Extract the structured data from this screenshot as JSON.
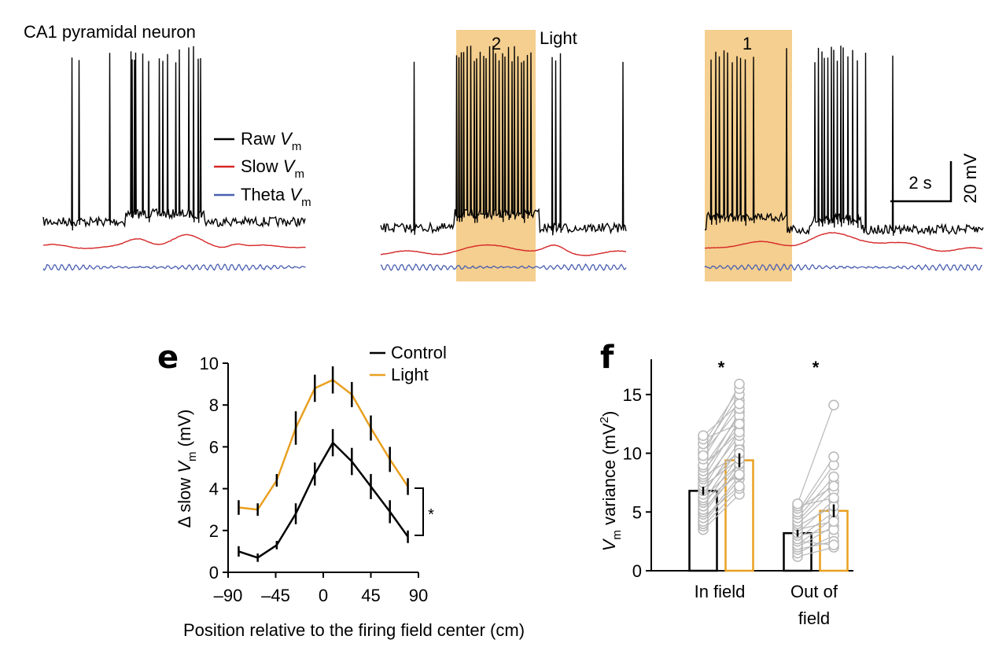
{
  "header": {
    "title": "CA1 pyramidal neuron"
  },
  "traces": {
    "legend": [
      {
        "label": "Raw ",
        "sub": "m",
        "color": "#000000"
      },
      {
        "label": "Slow ",
        "sub": "m",
        "color": "#d62728"
      },
      {
        "label": "Theta ",
        "sub": "m",
        "color": "#4a5fb0"
      }
    ],
    "legend_var": "V",
    "light_label": "Light",
    "light_color": "#f5cf8f",
    "box_labels": [
      "2",
      "1"
    ],
    "scalebar": {
      "time": "2 s",
      "voltage": "20 mV"
    }
  },
  "colors": {
    "control": "#000000",
    "light": "#e8a020",
    "points": "#b8b8b8"
  },
  "chart_data": [
    {
      "panel": "e",
      "type": "line",
      "xlabel": "Position relative to the firing field center (cm)",
      "ylabel_prefix": "Δ slow ",
      "ylabel_var": "V",
      "ylabel_sub": "m",
      "ylabel_suffix": " (mV)",
      "xlim": [
        -90,
        90
      ],
      "ylim": [
        0,
        10
      ],
      "xticks": [
        -90,
        -45,
        0,
        45,
        90
      ],
      "xtick_labels": [
        "–90",
        "–45",
        "0",
        "45",
        "90"
      ],
      "yticks": [
        0,
        2,
        4,
        6,
        8,
        10
      ],
      "ytick_labels": [
        "0",
        "2",
        "4",
        "6",
        "8",
        "10"
      ],
      "legend": [
        "Control",
        "Light"
      ],
      "significance": "*",
      "series": [
        {
          "name": "Control",
          "color": "#000000",
          "x": [
            -80,
            -62,
            -44,
            -26,
            -8,
            9,
            27,
            45,
            63,
            80
          ],
          "y": [
            1.0,
            0.7,
            1.3,
            2.8,
            4.7,
            6.2,
            5.3,
            4.1,
            2.9,
            1.7
          ],
          "err": [
            0.25,
            0.2,
            0.2,
            0.5,
            0.55,
            0.65,
            0.65,
            0.6,
            0.55,
            0.3
          ]
        },
        {
          "name": "Light",
          "color": "#e8a020",
          "x": [
            -80,
            -62,
            -44,
            -26,
            -8,
            9,
            27,
            45,
            63,
            80
          ],
          "y": [
            3.1,
            3.0,
            4.4,
            6.9,
            8.8,
            9.2,
            8.5,
            6.9,
            5.4,
            4.1
          ],
          "err": [
            0.35,
            0.3,
            0.3,
            0.8,
            0.65,
            0.65,
            0.6,
            0.6,
            0.6,
            0.4
          ]
        }
      ]
    },
    {
      "panel": "f",
      "type": "bar",
      "ylabel_var": "V",
      "ylabel_sub": "m",
      "ylabel_mid": " variance (mV",
      "ylabel_sup": "2",
      "ylabel_end": ")",
      "ylim": [
        0,
        18
      ],
      "yticks": [
        0,
        5,
        10,
        15
      ],
      "ytick_labels": [
        "0",
        "5",
        "10",
        "15"
      ],
      "categories": [
        "In field",
        "Out of field"
      ],
      "category_lines": [
        [
          "In field"
        ],
        [
          "Out of",
          "field"
        ]
      ],
      "significance": [
        "*",
        "*"
      ],
      "series": [
        {
          "name": "Control",
          "color": "#000000",
          "values": [
            6.8,
            3.2
          ],
          "err": [
            0.35,
            0.3
          ]
        },
        {
          "name": "Light",
          "color": "#e8a020",
          "values": [
            9.4,
            5.1
          ],
          "err": [
            0.6,
            0.55
          ]
        }
      ],
      "paired_points": [
        [
          [
            3.5,
            6.5
          ],
          [
            3.8,
            7.0
          ],
          [
            4.0,
            7.8
          ],
          [
            4.2,
            8.1
          ],
          [
            4.5,
            7.2
          ],
          [
            4.8,
            8.8
          ],
          [
            5.0,
            9.2
          ],
          [
            5.2,
            8.5
          ],
          [
            5.5,
            9.8
          ],
          [
            5.8,
            10.5
          ],
          [
            6.0,
            8.2
          ],
          [
            6.2,
            9.1
          ],
          [
            6.5,
            11.0
          ],
          [
            6.8,
            10.3
          ],
          [
            7.0,
            12.0
          ],
          [
            7.2,
            9.5
          ],
          [
            7.5,
            11.5
          ],
          [
            7.8,
            12.8
          ],
          [
            8.0,
            10.0
          ],
          [
            8.2,
            13.5
          ],
          [
            8.5,
            12.3
          ],
          [
            8.8,
            13.2
          ],
          [
            9.0,
            11.8
          ],
          [
            9.5,
            14.5
          ],
          [
            10.0,
            13.8
          ],
          [
            10.3,
            15.0
          ],
          [
            10.8,
            15.5
          ],
          [
            11.2,
            12.5
          ],
          [
            11.5,
            14.2
          ],
          [
            9.8,
            15.9
          ]
        ],
        [
          [
            1.2,
            2.0
          ],
          [
            1.5,
            3.0
          ],
          [
            1.8,
            2.5
          ],
          [
            2.0,
            3.8
          ],
          [
            2.2,
            4.5
          ],
          [
            2.5,
            2.2
          ],
          [
            2.7,
            5.0
          ],
          [
            3.0,
            3.5
          ],
          [
            3.2,
            6.0
          ],
          [
            3.5,
            4.2
          ],
          [
            3.8,
            5.5
          ],
          [
            4.0,
            6.8
          ],
          [
            4.2,
            7.5
          ],
          [
            4.5,
            8.0
          ],
          [
            4.8,
            9.0
          ],
          [
            5.0,
            9.7
          ],
          [
            5.3,
            7.2
          ],
          [
            5.5,
            6.2
          ],
          [
            5.7,
            14.1
          ]
        ]
      ]
    }
  ]
}
